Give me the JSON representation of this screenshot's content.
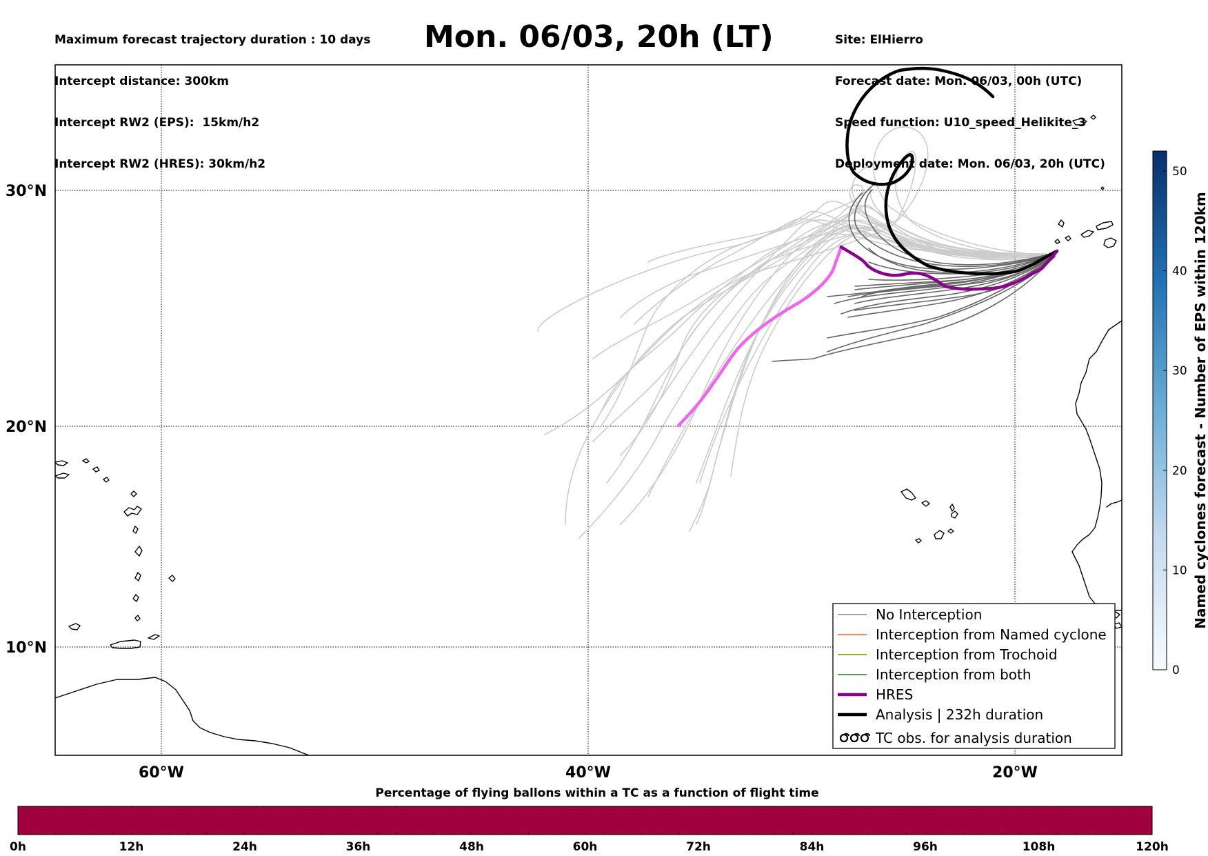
{
  "header": {
    "left_lines": [
      "Maximum forecast trajectory duration : 10 days",
      "Intercept distance: 300km",
      "Intercept RW2 (EPS):  15km/h2",
      "Intercept RW2 (HRES): 30km/h2"
    ],
    "title": "Mon. 06/03, 20h (LT)",
    "right_lines": [
      "Site: ElHierro",
      "Forecast date: Mon. 06/03, 00h (UTC)",
      "Speed function: U10_speed_Helikite_3",
      "Deployment date: Mon. 06/03, 20h (UTC)"
    ]
  },
  "map": {
    "lat_labels": [
      "30°N",
      "20°N",
      "10°N"
    ],
    "lon_labels": [
      "60°W",
      "40°W",
      "20°W"
    ],
    "lon_range_deg": [
      -65,
      -15
    ],
    "lat_range_deg": [
      5.5,
      35.3
    ],
    "gridlines": true
  },
  "legend": {
    "items": [
      {
        "label": "No Interception",
        "color": "#808080",
        "style": "thin"
      },
      {
        "label": "Interception from Named cyclone",
        "color": "#f05a1e",
        "style": "thin"
      },
      {
        "label": "Interception from Trochoid",
        "color": "#808000",
        "style": "thin"
      },
      {
        "label": "Interception from both",
        "color": "#1e7d1e",
        "style": "thin"
      },
      {
        "label": "HRES",
        "color": "#8b008b",
        "style": "thick"
      },
      {
        "label": "Analysis | 232h duration",
        "color": "#000000",
        "style": "thick"
      },
      {
        "label": "TC obs. for analysis duration",
        "color": "#000000",
        "style": "symbol"
      }
    ]
  },
  "colorbar_right": {
    "label": "Named cyclones forecast - Number of EPS within 120km",
    "ticks": [
      "0",
      "10",
      "20",
      "30",
      "40",
      "50"
    ],
    "range": [
      0,
      52
    ],
    "colormap": "Blues"
  },
  "colorbar_bottom": {
    "title": "Percentage of flying ballons within a TC as a function of flight time",
    "ticks": [
      "0h",
      "12h",
      "24h",
      "36h",
      "48h",
      "60h",
      "72h",
      "84h",
      "96h",
      "108h",
      "120h"
    ],
    "fill_color": "#a0003c"
  },
  "colors": {
    "hres_inland": "#ee66ee",
    "hres": "#8b008b",
    "analysis": "#000000",
    "eps_dark": "#666666",
    "eps_light": "#cccccc"
  }
}
